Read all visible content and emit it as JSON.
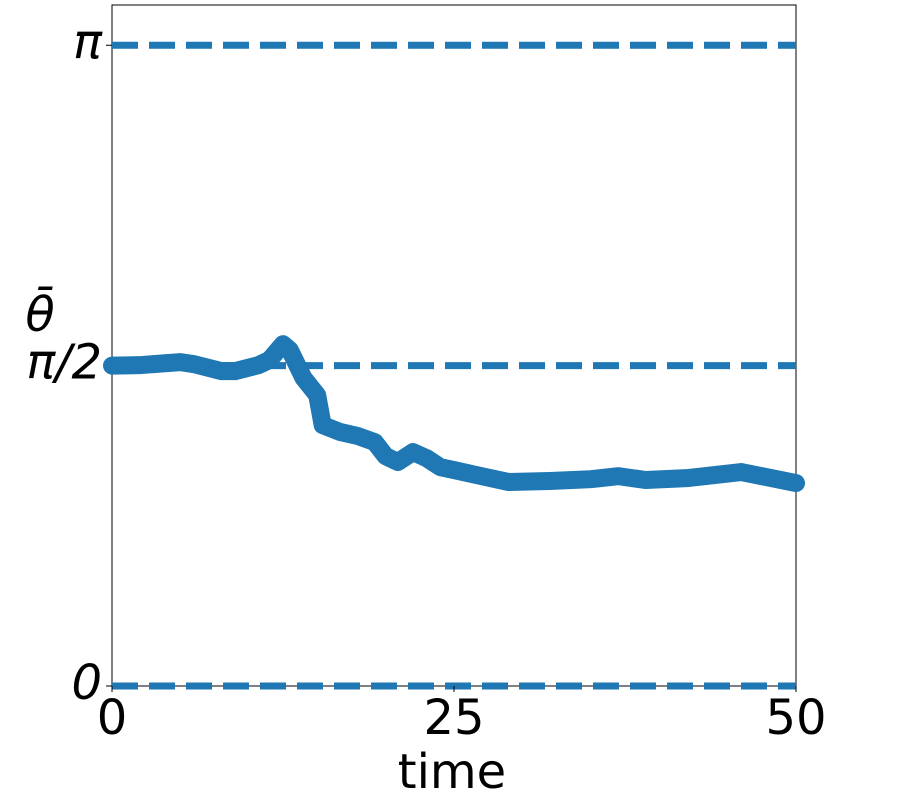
{
  "chart_data": {
    "type": "line",
    "x_label": "time",
    "y_label": "θ̄",
    "x": [
      0,
      2,
      4,
      5,
      6,
      8,
      9,
      10.7,
      11.5,
      12.5,
      13,
      14,
      15,
      15.4,
      16.7,
      18,
      19.2,
      20,
      20.9,
      22,
      23,
      24,
      25,
      27,
      29,
      32,
      35,
      37,
      39,
      42,
      46,
      50
    ],
    "series": [
      {
        "color": "#1f77b4",
        "values": [
          1.571,
          1.573,
          1.583,
          1.588,
          1.578,
          1.544,
          1.544,
          1.573,
          1.598,
          1.676,
          1.647,
          1.51,
          1.426,
          1.279,
          1.245,
          1.225,
          1.196,
          1.127,
          1.098,
          1.147,
          1.117,
          1.073,
          1.059,
          1.029,
          1.0,
          1.005,
          1.014,
          1.029,
          1.01,
          1.019,
          1.049,
          0.995
        ]
      }
    ],
    "reference_lines": {
      "color": "#1f77b4",
      "values": [
        0,
        1.5708,
        3.1416
      ]
    },
    "xlim": [
      0,
      50
    ],
    "xticks": [
      0,
      25,
      50
    ],
    "ylim": [
      0,
      3.339
    ],
    "yticks": [
      0,
      {
        "value": 1.5708,
        "label": "π/2"
      },
      {
        "value": 3.1416,
        "label": "π"
      }
    ]
  }
}
